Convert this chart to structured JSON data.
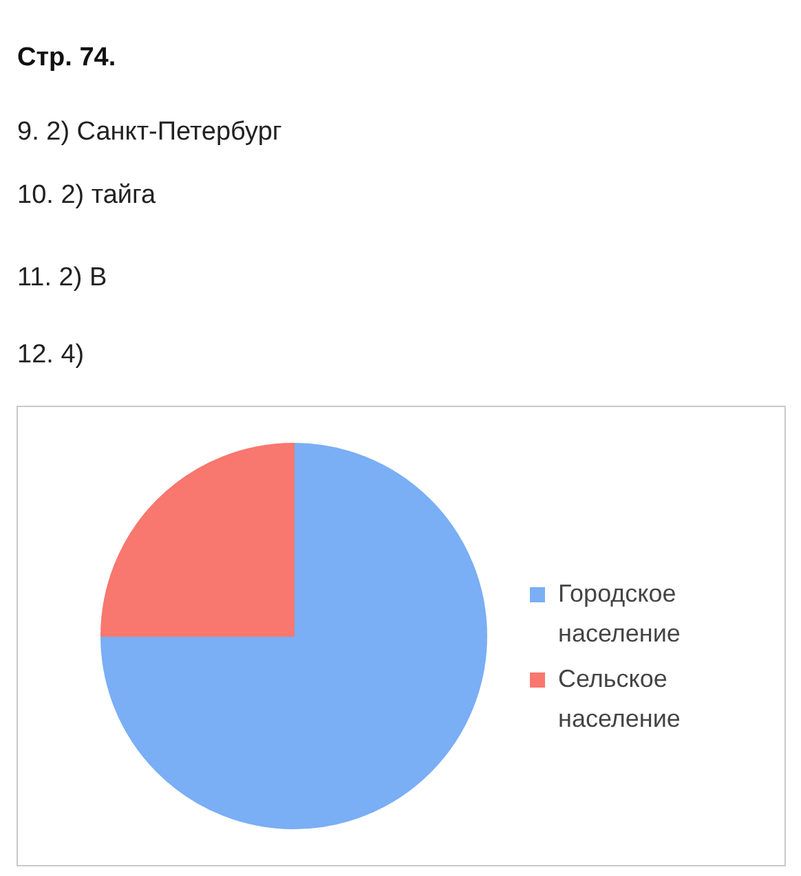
{
  "chart_data": {
    "type": "pie",
    "title": "Стр. 74.",
    "annotations": [
      "9. 2) Санкт-Петербург",
      "10. 2) тайга",
      "11. 2) В",
      "12. 4)"
    ],
    "categories": [
      "Городское население",
      "Сельское население"
    ],
    "values": [
      75,
      25
    ],
    "colors": [
      "#7aaef5",
      "#f8776f"
    ],
    "legend": "right"
  }
}
